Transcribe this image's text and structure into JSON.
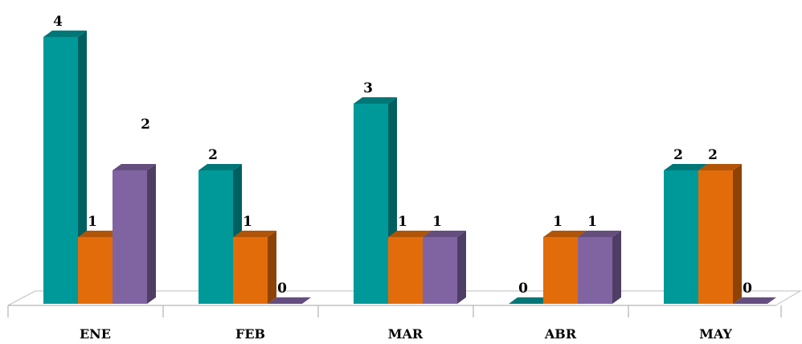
{
  "chart_data": {
    "type": "bar",
    "style": "3d-clustered-column",
    "categories": [
      "ENE",
      "FEB",
      "MAR",
      "ABR",
      "MAY"
    ],
    "series": [
      {
        "values": [
          4,
          2,
          3,
          0,
          2
        ],
        "color": "#009999"
      },
      {
        "values": [
          1,
          1,
          1,
          1,
          2
        ],
        "color": "#E36C0A"
      },
      {
        "values": [
          2,
          0,
          1,
          1,
          0
        ],
        "color": "#8064A2"
      }
    ],
    "ylim": [
      0,
      4
    ],
    "grid": false,
    "legend": "none",
    "data_labels": true
  }
}
